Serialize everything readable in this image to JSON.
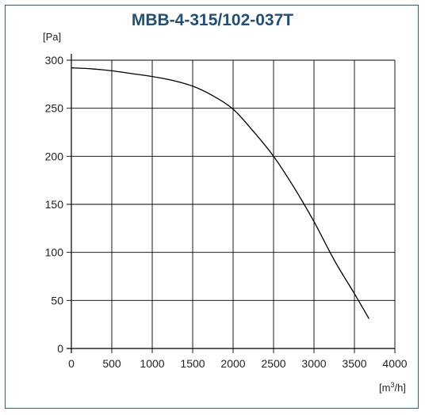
{
  "chart_data": {
    "type": "line",
    "title": "MBB-4-315/102-037T",
    "ylabel": "[Pa]",
    "xlabel": "[m³/h]",
    "xlim": [
      0,
      4000
    ],
    "ylim": [
      0,
      300
    ],
    "x_ticks": [
      "0",
      "500",
      "1000",
      "1500",
      "2000",
      "2500",
      "3000",
      "3500",
      "4000"
    ],
    "y_ticks": [
      "0",
      "50",
      "100",
      "150",
      "200",
      "250",
      "300"
    ],
    "x_tick_values": [
      0,
      500,
      1000,
      1500,
      2000,
      2500,
      3000,
      3500,
      4000
    ],
    "y_tick_values": [
      0,
      50,
      100,
      150,
      200,
      250,
      300
    ],
    "grid": true,
    "series": [
      {
        "x": [
          0,
          250,
          500,
          750,
          1000,
          1250,
          1500,
          1750,
          2000,
          2250,
          2500,
          2750,
          3000,
          3250,
          3500,
          3680
        ],
        "y": [
          292,
          291,
          289,
          286,
          283,
          279,
          273,
          263,
          249,
          226,
          200,
          168,
          132,
          92,
          57,
          31
        ]
      }
    ],
    "line_color": "#000000",
    "title_color": "#1f4f7a",
    "frame_color": "#2c5d84"
  }
}
